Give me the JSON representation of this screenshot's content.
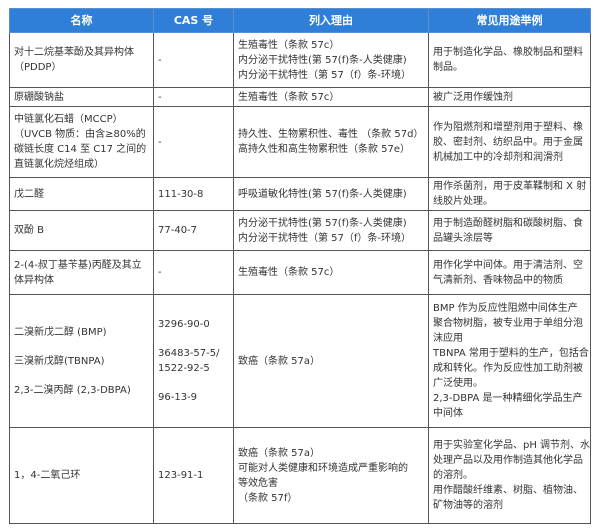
{
  "header": {
    "name": "名称",
    "cas": "CAS 号",
    "reason": "列入理由",
    "use": "常见用途举例"
  },
  "colors": {
    "header_bg": "#2f7fd8",
    "header_text": "#ffffff",
    "border": "#555555"
  },
  "rows": [
    {
      "name": [
        "对十二烷基苯酚及其异构体",
        "（PDDP）"
      ],
      "cas": [
        "-"
      ],
      "reasons": [
        "生殖毒性（条款 57c）",
        "内分泌干扰特性(第 57(f)条-人类健康)",
        "内分泌干扰特性（第 57（f）条-环境）"
      ],
      "use": [
        "用于制造化学品、橡胶制品和塑料",
        "制品。"
      ]
    },
    {
      "name": [
        "原硼酸钠盐"
      ],
      "cas": [
        "-"
      ],
      "reasons": [
        "生殖毒性（条款 57c）"
      ],
      "use": [
        "被广泛用作缓蚀剂"
      ]
    },
    {
      "name": [
        "中链氯化石蜡（MCCP）",
        "（UVCB 物质：由含≥80%的",
        "碳链长度 C14 至 C17 之间的",
        "直链氯化烷烃组成）"
      ],
      "cas": [
        "-"
      ],
      "reasons": [
        "持久性、生物累积性、毒性 （条款 57d）",
        "高持久性和高生物累积性（条款 57e）"
      ],
      "use": [
        "作为阻燃剂和增塑剂用于塑料、橡",
        "胶、密封剂、纺织品中。用于金属",
        "机械加工中的冷却剂和润滑剂"
      ]
    },
    {
      "name": [
        "戊二醛"
      ],
      "cas": [
        "111-30-8"
      ],
      "reasons": [
        "呼吸道敏化特性(第 57(f)条-人类健康)"
      ],
      "use": [
        "用作杀菌剂，用于皮革鞣制和 X 射",
        "线胶片处理。"
      ]
    },
    {
      "name": [
        "双酚 B"
      ],
      "cas": [
        "77-40-7"
      ],
      "reasons": [
        "内分泌干扰特性(第 57(f)条-人类健康)",
        "内分泌干扰特性（第 57（f）条-环境）"
      ],
      "use": [
        "用于制造酚醛树脂和碳酸树脂、食",
        "品罐头涂层等"
      ]
    },
    {
      "name": [
        "2-(4-叔丁基苄基)丙醛及其立",
        "体异构体"
      ],
      "cas": [
        "-"
      ],
      "reasons": [
        "生殖毒性（条款 57c）"
      ],
      "use": [
        "用作化学中间体。用于清洁剂、空",
        "气清新剂、香味物品中的物质"
      ]
    },
    {
      "name": [
        "二溴新戊二醇 (BMP)",
        "三溴新戊醇(TBNPA)",
        "2,3-二溴丙醇 (2,3-DBPA)"
      ],
      "cas": [
        "3296-90-0",
        "36483-57-5/",
        "1522-92-5",
        "96-13-9"
      ],
      "reasons": [
        "致癌（条款 57a）"
      ],
      "use": [
        "BMP 作为反应性阻燃中间体生产",
        "聚合物树脂，被专业用于单组分泡",
        "沫应用",
        "TBNPA 常用于塑料的生产，包括合",
        "成和转化。作为反应性加工助剂被",
        "广泛使用。",
        "2,3-DBPA 是一种精细化学品生产",
        "中间体"
      ]
    },
    {
      "name": [
        "1，4-二氧己环"
      ],
      "cas": [
        "123-91-1"
      ],
      "reasons": [
        "致癌（条款 57a）",
        "可能对人类健康和环境造成严重影响的",
        "等效危害",
        "（条款 57f）"
      ],
      "use": [
        "用于实验室化学品、pH 调节剂、水",
        "处理产品以及用作制造其他化学品",
        "的溶剂。",
        "用作醋酸纤维素、树脂、植物油、",
        "矿物油等的溶剂"
      ]
    }
  ]
}
